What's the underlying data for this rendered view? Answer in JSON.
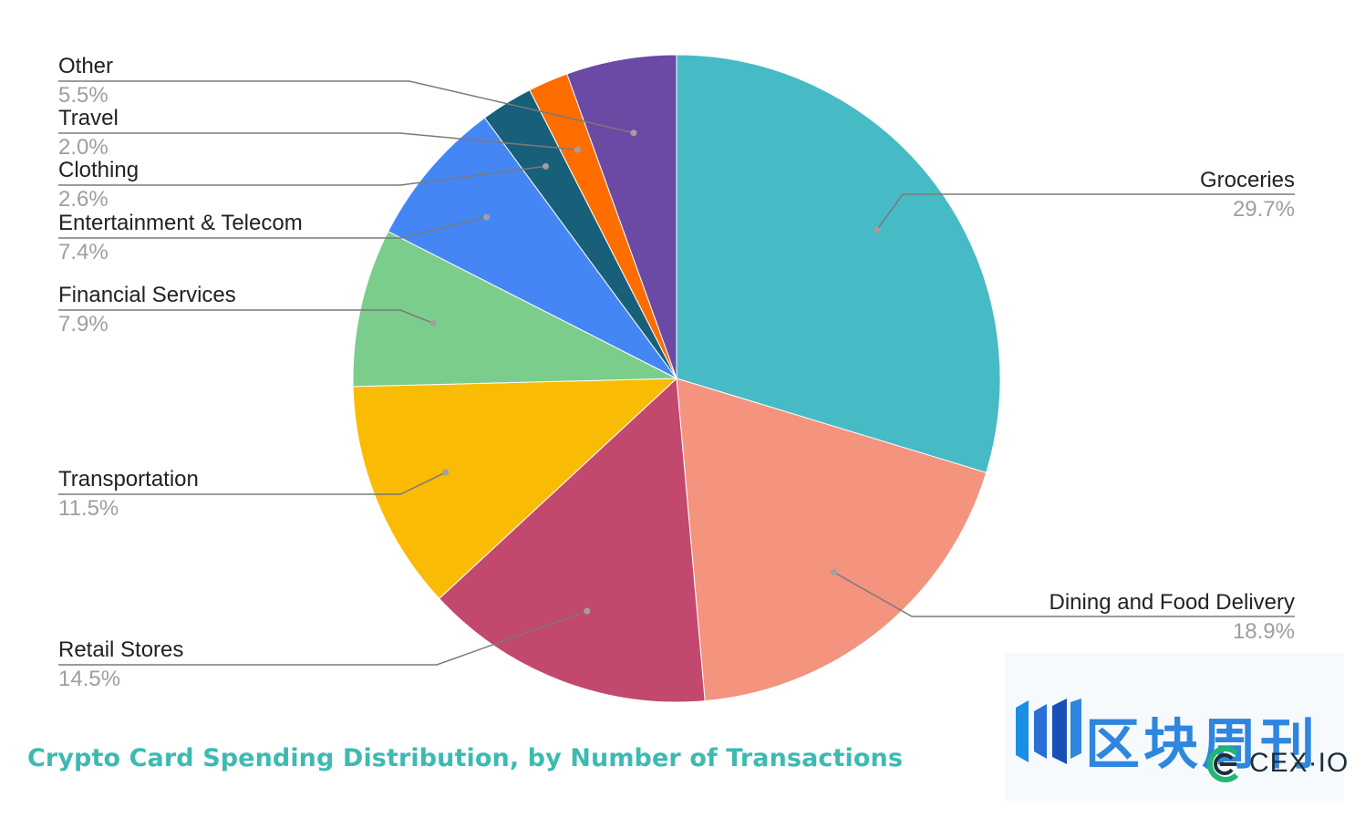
{
  "chart_data": {
    "type": "pie",
    "title": "Crypto Card Spending Distribution, by Number of Transactions",
    "slices": [
      {
        "label": "Groceries",
        "value": 29.7,
        "value_label": "29.7%",
        "color": "#46bbc6"
      },
      {
        "label": "Dining and Food Delivery",
        "value": 18.9,
        "value_label": "18.9%",
        "color": "#f4937e"
      },
      {
        "label": "Retail Stores",
        "value": 14.5,
        "value_label": "14.5%",
        "color": "#c2486e"
      },
      {
        "label": "Transportation",
        "value": 11.5,
        "value_label": "11.5%",
        "color": "#fabb05"
      },
      {
        "label": "Financial Services",
        "value": 7.9,
        "value_label": "7.9%",
        "color": "#7bcd8b"
      },
      {
        "label": "Entertainment & Telecom",
        "value": 7.4,
        "value_label": "7.4%",
        "color": "#4586f5"
      },
      {
        "label": "Clothing",
        "value": 2.6,
        "value_label": "2.6%",
        "color": "#185f79"
      },
      {
        "label": "Travel",
        "value": 2.0,
        "value_label": "2.0%",
        "color": "#fe6d00"
      },
      {
        "label": "Other",
        "value": 5.5,
        "value_label": "5.5%",
        "color": "#6a4aa5"
      }
    ],
    "start_angle_deg": 0,
    "direction": "clockwise",
    "legend": "none (leader-line labels)"
  },
  "watermark": {
    "chinese_text": "区块周刊",
    "brand_text": "CEX·IO",
    "chinese_color": "#2e86de"
  }
}
